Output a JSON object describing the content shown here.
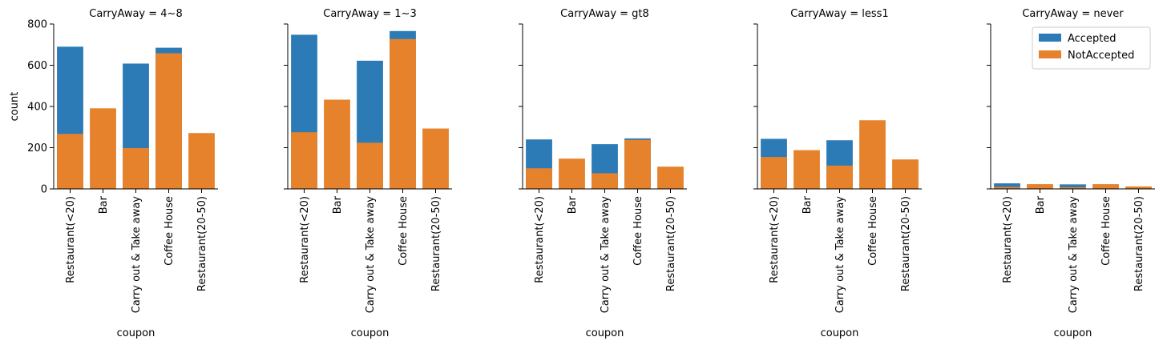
{
  "chart_data": [
    {
      "type": "bar",
      "title": "CarryAway = 4~8",
      "xlabel": "coupon",
      "ylabel": "count",
      "categories": [
        "Restaurant(<20)",
        "Bar",
        "Carry out & Take away",
        "Coffee House",
        "Restaurant(20-50)"
      ],
      "ylim": [
        0,
        800
      ],
      "yticks": [
        0,
        200,
        400,
        600,
        800
      ],
      "series": [
        {
          "name": "Accepted",
          "values": [
            690,
            0,
            608,
            685,
            0
          ]
        },
        {
          "name": "NotAccepted",
          "values": [
            267,
            391,
            198,
            658,
            271
          ]
        }
      ]
    },
    {
      "type": "bar",
      "title": "CarryAway = 1~3",
      "xlabel": "coupon",
      "ylabel": "",
      "categories": [
        "Restaurant(<20)",
        "Bar",
        "Carry out & Take away",
        "Coffee House",
        "Restaurant(20-50)"
      ],
      "ylim": [
        0,
        800
      ],
      "yticks": [
        0,
        200,
        400,
        600,
        800
      ],
      "series": [
        {
          "name": "Accepted",
          "values": [
            748,
            0,
            622,
            766,
            0
          ]
        },
        {
          "name": "NotAccepted",
          "values": [
            275,
            433,
            224,
            727,
            293
          ]
        }
      ]
    },
    {
      "type": "bar",
      "title": "CarryAway = gt8",
      "xlabel": "coupon",
      "ylabel": "",
      "categories": [
        "Restaurant(<20)",
        "Bar",
        "Carry out & Take away",
        "Coffee House",
        "Restaurant(20-50)"
      ],
      "ylim": [
        0,
        800
      ],
      "yticks": [
        0,
        200,
        400,
        600,
        800
      ],
      "series": [
        {
          "name": "Accepted",
          "values": [
            240,
            0,
            217,
            245,
            0
          ]
        },
        {
          "name": "NotAccepted",
          "values": [
            100,
            147,
            76,
            238,
            108
          ]
        }
      ]
    },
    {
      "type": "bar",
      "title": "CarryAway = less1",
      "xlabel": "coupon",
      "ylabel": "",
      "categories": [
        "Restaurant(<20)",
        "Bar",
        "Carry out & Take away",
        "Coffee House",
        "Restaurant(20-50)"
      ],
      "ylim": [
        0,
        800
      ],
      "yticks": [
        0,
        200,
        400,
        600,
        800
      ],
      "series": [
        {
          "name": "Accepted",
          "values": [
            243,
            0,
            236,
            0,
            0
          ]
        },
        {
          "name": "NotAccepted",
          "values": [
            155,
            188,
            113,
            333,
            143
          ]
        }
      ]
    },
    {
      "type": "bar",
      "title": "CarryAway = never",
      "xlabel": "coupon",
      "ylabel": "",
      "categories": [
        "Restaurant(<20)",
        "Bar",
        "Carry out & Take away",
        "Coffee House",
        "Restaurant(20-50)"
      ],
      "ylim": [
        0,
        800
      ],
      "yticks": [
        0,
        200,
        400,
        600,
        800
      ],
      "series": [
        {
          "name": "Accepted",
          "values": [
            27,
            0,
            22,
            0,
            0
          ]
        },
        {
          "name": "NotAccepted",
          "values": [
            10,
            23,
            8,
            23,
            12
          ]
        }
      ]
    }
  ],
  "legend": {
    "placement": "top-right of last panel",
    "items": [
      {
        "label": "Accepted",
        "color": "#1f77b4"
      },
      {
        "label": "NotAccepted",
        "color": "#ff7f0e"
      }
    ]
  },
  "colors": {
    "Accepted": "#2c7bb6",
    "NotAccepted": "#e6822c"
  }
}
